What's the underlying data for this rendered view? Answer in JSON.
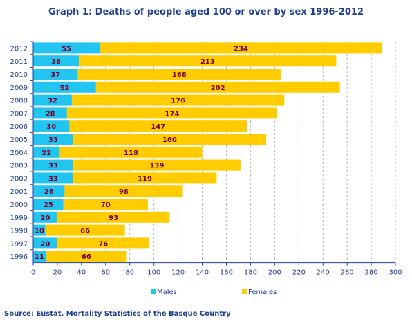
{
  "chart_data": {
    "type": "bar",
    "orientation": "horizontal",
    "stacked": true,
    "title": "Graph 1: Deaths of people aged 100 or over by sex 1996-2012",
    "categories": [
      "2012",
      "2011",
      "2010",
      "2009",
      "2008",
      "2007",
      "2006",
      "2005",
      "2004",
      "2003",
      "2002",
      "2001",
      "2000",
      "1999",
      "1998",
      "1997",
      "1996"
    ],
    "series": [
      {
        "name": "Males",
        "color": "#22c4f0",
        "values": [
          55,
          38,
          37,
          52,
          32,
          28,
          30,
          33,
          22,
          33,
          33,
          26,
          25,
          20,
          10,
          20,
          11
        ]
      },
      {
        "name": "Females",
        "color": "#ffcc00",
        "values": [
          234,
          213,
          168,
          202,
          176,
          174,
          147,
          160,
          118,
          139,
          119,
          98,
          70,
          93,
          66,
          76,
          66
        ]
      }
    ],
    "xlim": [
      0,
      300
    ],
    "xticks": [
      0,
      20,
      40,
      60,
      80,
      100,
      120,
      140,
      160,
      180,
      200,
      220,
      240,
      260,
      280,
      300
    ],
    "grid": "vertical-dashed",
    "legend_position": "bottom",
    "label_color": "#7a0030"
  },
  "source": "Source: Eustat. Mortality Statistics of the Basque Country"
}
